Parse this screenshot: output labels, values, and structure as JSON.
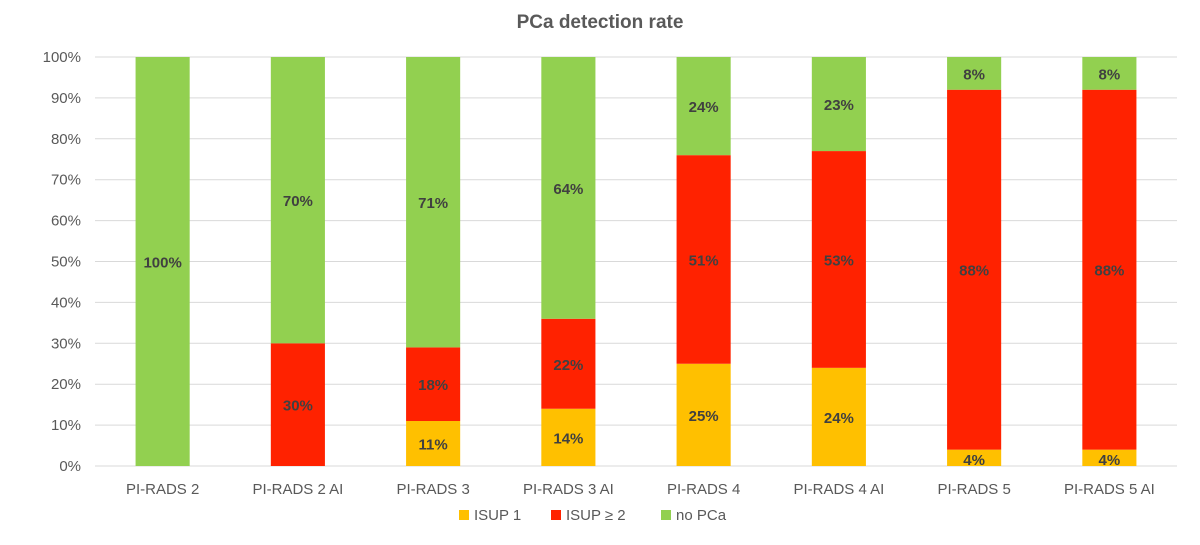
{
  "chart_data": {
    "type": "bar",
    "stacked": true,
    "title": "PCa detection rate",
    "xlabel": "",
    "ylabel": "",
    "ylim": [
      0,
      100
    ],
    "y_ticks": [
      "0%",
      "10%",
      "20%",
      "30%",
      "40%",
      "50%",
      "60%",
      "70%",
      "80%",
      "90%",
      "100%"
    ],
    "grid": true,
    "legend_position": "bottom",
    "categories": [
      "PI-RADS 2",
      "PI-RADS 2 AI",
      "PI-RADS 3",
      "PI-RADS 3 AI",
      "PI-RADS 4",
      "PI-RADS 4 AI",
      "PI-RADS 5",
      "PI-RADS 5 AI"
    ],
    "series": [
      {
        "name": "ISUP 1",
        "color": "#ffc000",
        "values": [
          0,
          0,
          11,
          14,
          25,
          24,
          4,
          4
        ],
        "labels": [
          "",
          "",
          "11%",
          "14%",
          "25%",
          "24%",
          "4%",
          "4%"
        ]
      },
      {
        "name": "ISUP ≥ 2",
        "color": "#ff2200",
        "values": [
          0,
          30,
          18,
          22,
          51,
          53,
          88,
          88
        ],
        "labels": [
          "",
          "30%",
          "18%",
          "22%",
          "51%",
          "53%",
          "88%",
          "88%"
        ]
      },
      {
        "name": "no PCa",
        "color": "#92d050",
        "values": [
          100,
          70,
          71,
          64,
          24,
          23,
          8,
          8
        ],
        "labels": [
          "100%",
          "70%",
          "71%",
          "64%",
          "24%",
          "23%",
          "8%",
          "8%"
        ]
      }
    ]
  }
}
